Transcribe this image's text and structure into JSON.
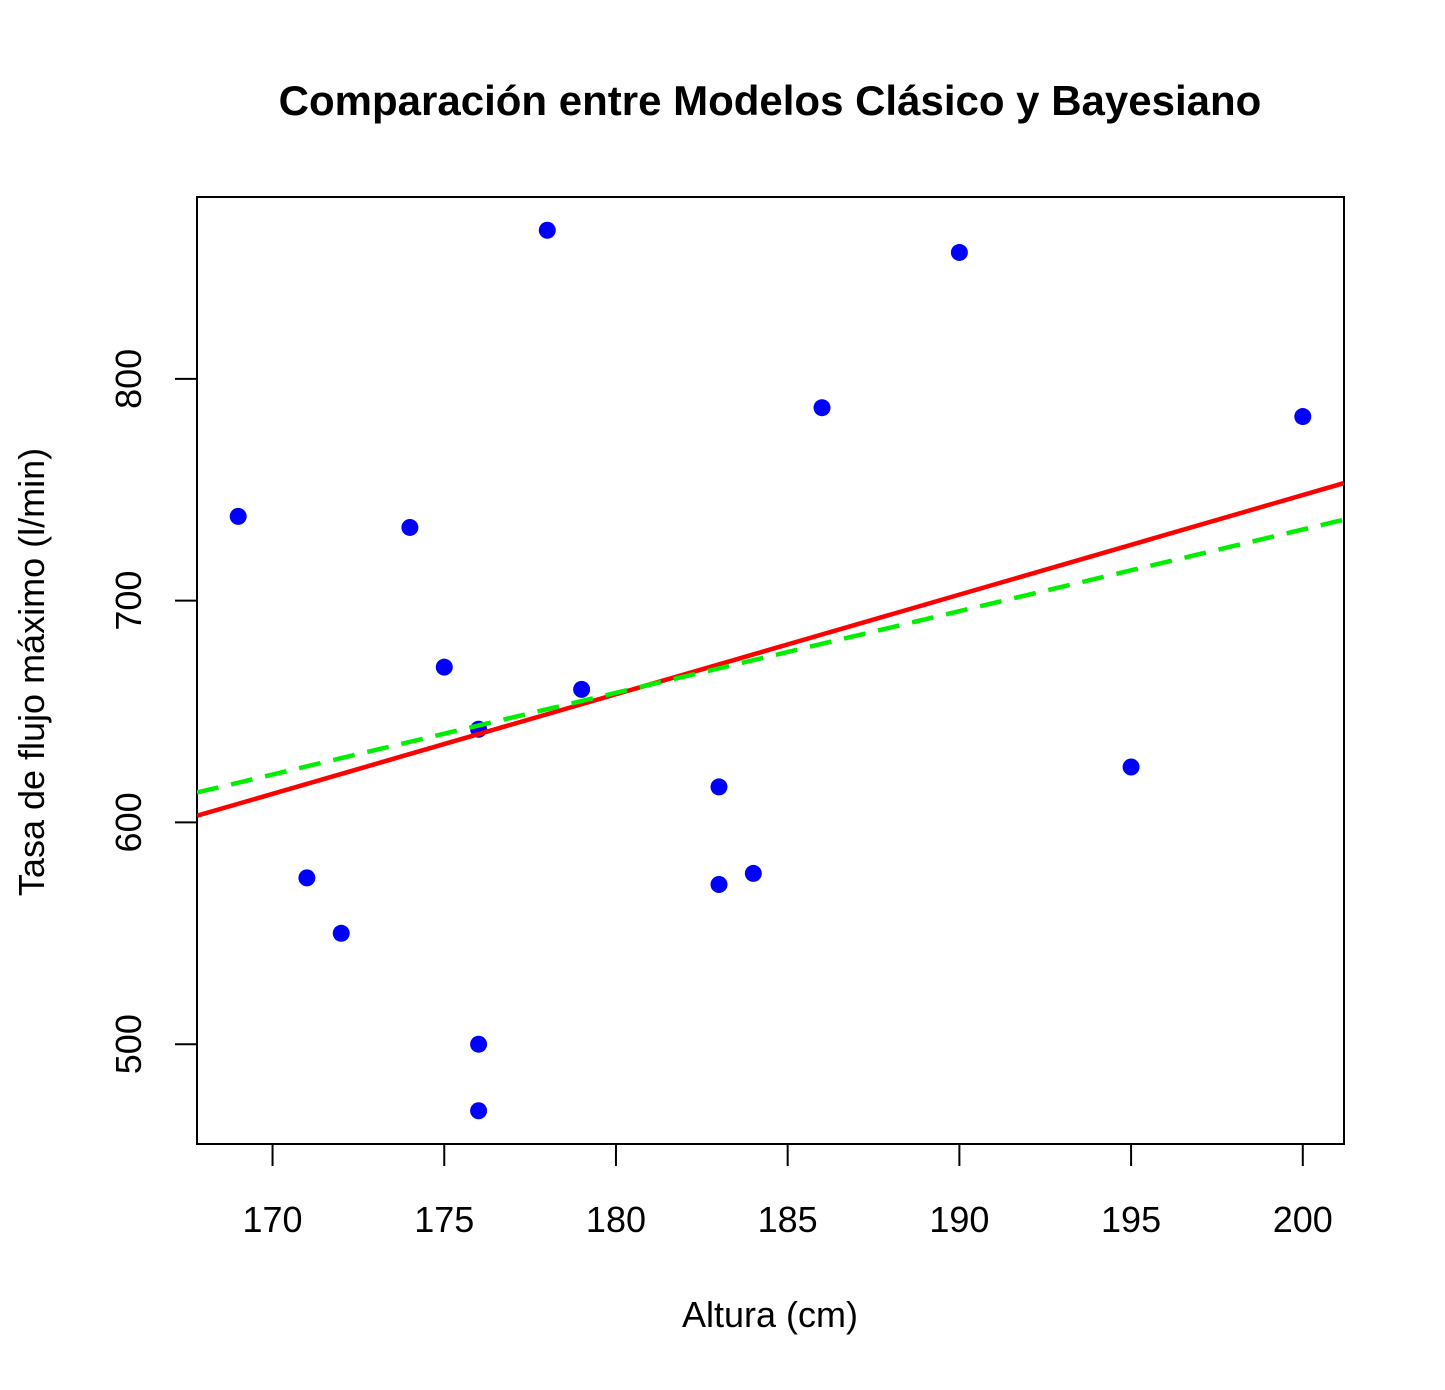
{
  "chart_data": {
    "type": "scatter",
    "title": "Comparación entre Modelos Clásico y Bayesiano",
    "xlabel": "Altura (cm)",
    "ylabel": "Tasa de flujo máximo (l/min)",
    "xlim": [
      167.8,
      201.2
    ],
    "ylim": [
      455,
      882
    ],
    "x_ticks": [
      "170",
      "175",
      "180",
      "185",
      "190",
      "195",
      "200"
    ],
    "y_ticks": [
      "500",
      "600",
      "700",
      "800"
    ],
    "grid": false,
    "points": [
      {
        "x": 169,
        "y": 738
      },
      {
        "x": 171,
        "y": 575
      },
      {
        "x": 172,
        "y": 550
      },
      {
        "x": 174,
        "y": 733
      },
      {
        "x": 175,
        "y": 670
      },
      {
        "x": 176,
        "y": 642
      },
      {
        "x": 176,
        "y": 500
      },
      {
        "x": 176,
        "y": 470
      },
      {
        "x": 178,
        "y": 867
      },
      {
        "x": 179,
        "y": 660
      },
      {
        "x": 183,
        "y": 616
      },
      {
        "x": 183,
        "y": 572
      },
      {
        "x": 184,
        "y": 577
      },
      {
        "x": 186,
        "y": 787
      },
      {
        "x": 190,
        "y": 857
      },
      {
        "x": 195,
        "y": 625
      },
      {
        "x": 200,
        "y": 783
      }
    ],
    "lines": [
      {
        "x": [
          167.8,
          201.2
        ],
        "y": [
          603,
          753
        ],
        "color": "#ff0000",
        "style": "solid"
      },
      {
        "x": [
          167.8,
          201.2
        ],
        "y": [
          613.5,
          736.5
        ],
        "color": "#00ee00",
        "style": "dashed"
      }
    ],
    "colors": {
      "points": "#0000ff",
      "axes": "#000000"
    }
  }
}
